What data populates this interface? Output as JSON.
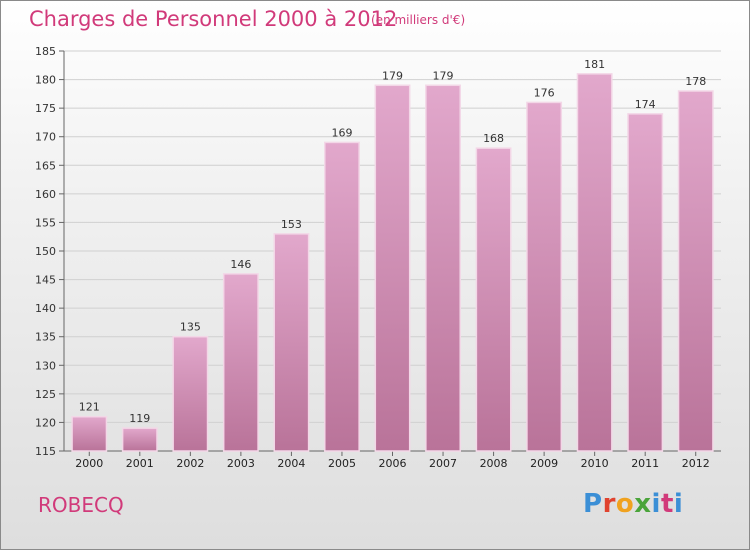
{
  "chart_data": {
    "type": "bar",
    "title": "Charges de Personnel 2000 à 2012",
    "subtitle": "(en milliers d'€)",
    "categories": [
      "2000",
      "2001",
      "2002",
      "2003",
      "2004",
      "2005",
      "2006",
      "2007",
      "2008",
      "2009",
      "2010",
      "2011",
      "2012"
    ],
    "values": [
      121,
      119,
      135,
      146,
      153,
      169,
      179,
      179,
      168,
      176,
      181,
      174,
      178
    ],
    "ylim": [
      115,
      185
    ],
    "yticks": [
      115,
      120,
      125,
      130,
      135,
      140,
      145,
      150,
      155,
      160,
      165,
      170,
      175,
      180,
      185
    ],
    "xlabel": "",
    "ylabel": "",
    "grid": true,
    "bar_color_top": "#e2a8cc",
    "bar_color_bottom": "#b97399"
  },
  "footer": {
    "city": "ROBECQ",
    "logo_text": "Proxiti"
  },
  "colors": {
    "title": "#d13a7a",
    "logo_p": "#3b8fd6",
    "logo_r": "#e0432f",
    "logo_o": "#f0a21f",
    "logo_x": "#4aa43a",
    "logo_i": "#3b8fd6",
    "logo_t": "#d13a7a",
    "logo_i2": "#3b8fd6"
  }
}
